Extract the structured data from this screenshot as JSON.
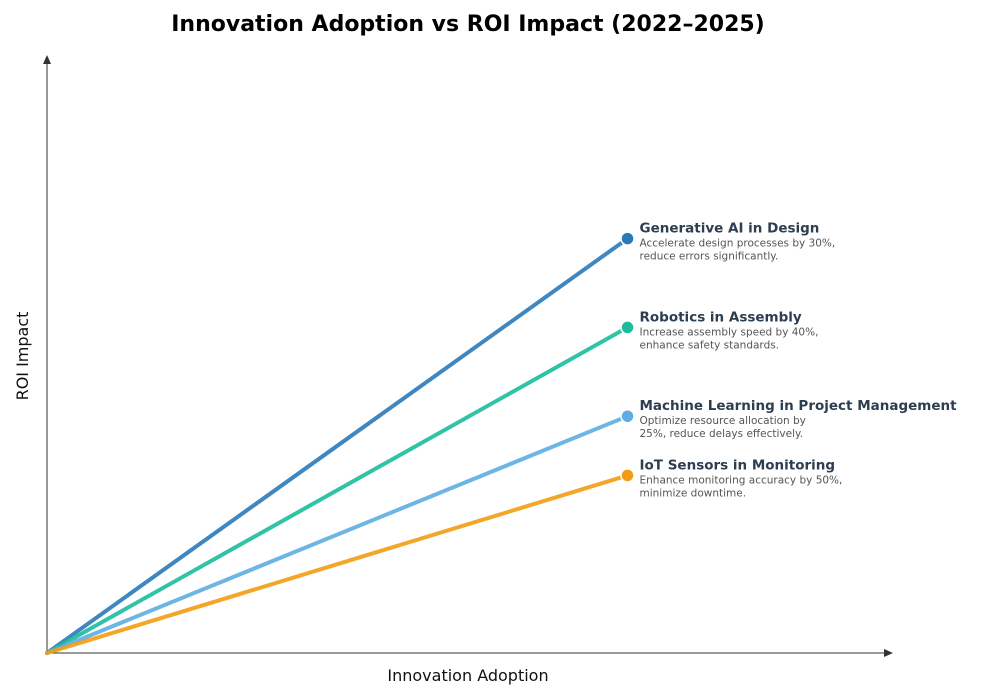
{
  "chart_data": {
    "type": "line",
    "title": "Innovation Adoption vs ROI Impact (2022–2025)",
    "xlabel": "Innovation Adoption",
    "ylabel": "ROI Impact",
    "grid": false,
    "legend": "annotations at line ends",
    "series": [
      {
        "name": "Generative AI in Design",
        "description_lines": [
          "Accelerate design processes by 30%,",
          "reduce errors significantly."
        ],
        "color": "#2a7ab9",
        "points": [
          [
            0,
            0
          ],
          [
            0.687,
            0.7
          ]
        ]
      },
      {
        "name": "Robotics in Assembly",
        "description_lines": [
          "Increase assembly speed by 40%,",
          "enhance safety standards."
        ],
        "color": "#1abc9c",
        "points": [
          [
            0,
            0
          ],
          [
            0.687,
            0.55
          ]
        ]
      },
      {
        "name": "Machine Learning in Project Management",
        "description_lines": [
          "Optimize resource allocation by",
          "25%, reduce delays effectively."
        ],
        "color": "#5dade2",
        "points": [
          [
            0,
            0
          ],
          [
            0.687,
            0.4
          ]
        ]
      },
      {
        "name": "IoT Sensors in Monitoring",
        "description_lines": [
          "Enhance monitoring accuracy by 50%,",
          "minimize downtime."
        ],
        "color": "#f39c12",
        "points": [
          [
            0,
            0
          ],
          [
            0.687,
            0.3
          ]
        ]
      }
    ]
  }
}
